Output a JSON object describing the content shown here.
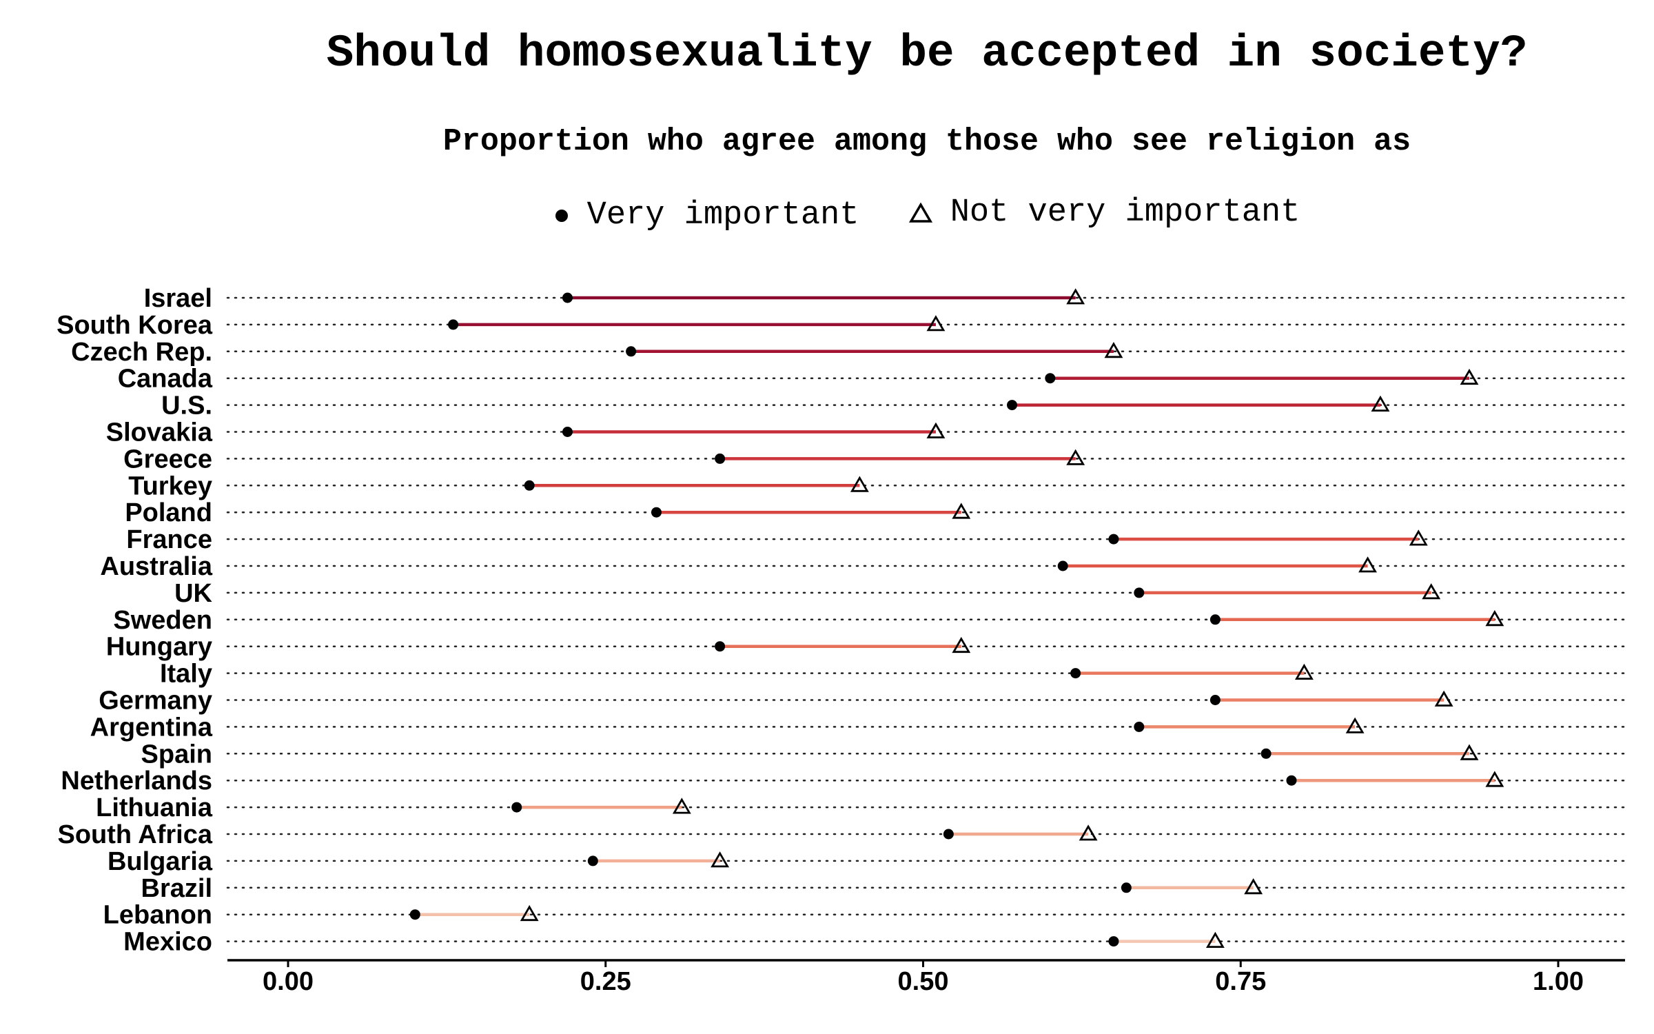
{
  "chart_data": {
    "type": "dumbbell",
    "title": "Should homosexuality be accepted in society?",
    "subtitle": "Proportion who agree among those who see religion as",
    "legend": {
      "placement": "top",
      "entries": [
        {
          "label": "Very important",
          "marker": "filled-circle"
        },
        {
          "label": "Not very important",
          "marker": "open-triangle"
        }
      ]
    },
    "xlim": [
      -0.03,
      1.02
    ],
    "x_ticks": [
      0.0,
      0.25,
      0.5,
      0.75,
      1.0
    ],
    "x_tick_labels": [
      "0.00",
      "0.25",
      "0.50",
      "0.75",
      "1.00"
    ],
    "grid": "dotted horizontal guides",
    "categories": [
      "Israel",
      "South Korea",
      "Czech Rep.",
      "Canada",
      "U.S.",
      "Slovakia",
      "Greece",
      "Turkey",
      "Poland",
      "France",
      "Australia",
      "UK",
      "Sweden",
      "Hungary",
      "Italy",
      "Germany",
      "Argentina",
      "Spain",
      "Netherlands",
      "Lithuania",
      "South Africa",
      "Bulgaria",
      "Brazil",
      "Lebanon",
      "Mexico"
    ],
    "series": [
      {
        "name": "Very important",
        "values": [
          0.22,
          0.13,
          0.27,
          0.6,
          0.57,
          0.22,
          0.34,
          0.19,
          0.29,
          0.65,
          0.61,
          0.67,
          0.73,
          0.34,
          0.62,
          0.73,
          0.67,
          0.77,
          0.79,
          0.18,
          0.52,
          0.24,
          0.66,
          0.1,
          0.65
        ]
      },
      {
        "name": "Not very important",
        "values": [
          0.62,
          0.51,
          0.65,
          0.93,
          0.86,
          0.51,
          0.62,
          0.45,
          0.53,
          0.89,
          0.85,
          0.9,
          0.95,
          0.53,
          0.8,
          0.91,
          0.84,
          0.93,
          0.95,
          0.31,
          0.63,
          0.34,
          0.76,
          0.19,
          0.73
        ]
      }
    ],
    "segment_colors": [
      "#8b0a2e",
      "#970f30",
      "#a21432",
      "#b01c33",
      "#bd2535",
      "#c52d38",
      "#cc353b",
      "#d23d3e",
      "#d74641",
      "#db4e44",
      "#df5647",
      "#e25e4c",
      "#e46752",
      "#e66f58",
      "#e8775e",
      "#ea7f65",
      "#ec876c",
      "#ed8f74",
      "#ee977c",
      "#efa085",
      "#f0a88e",
      "#f1b097",
      "#f2b8a0",
      "#f3c0aa",
      "#f4c7b3"
    ]
  }
}
